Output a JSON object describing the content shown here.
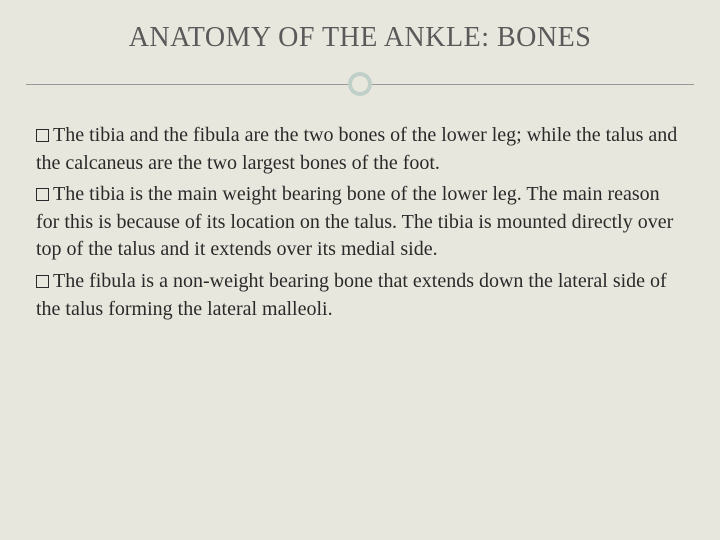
{
  "slide": {
    "title": "ANATOMY OF THE ANKLE: BONES",
    "background_color": "#e8e7dd",
    "title_color": "#5a5a5a",
    "title_fontsize": 28,
    "divider_circle_color": "#bfd0c9",
    "divider_line_color": "#999999",
    "text_color": "#2a2a2a",
    "body_fontsize": 20,
    "bullets": [
      "The tibia and the fibula are the two bones of the lower leg; while the talus and the calcaneus are the two largest bones of the foot.",
      "The tibia is the main weight bearing bone of the lower leg. The main reason for this is because of its location on the talus.  The tibia is mounted directly over top of the talus and it extends over its medial side.",
      "The fibula is a non-weight bearing bone that extends down the lateral side of the talus forming the lateral malleoli."
    ]
  }
}
